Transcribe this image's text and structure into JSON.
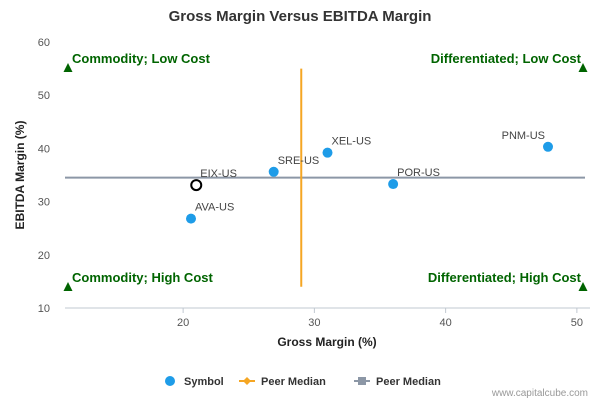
{
  "chart_data": {
    "type": "scatter",
    "title": "Gross Margin Versus EBITDA Margin",
    "xlabel": "Gross Margin (%)",
    "ylabel": "EBITDA Margin (%)",
    "xlim": [
      11,
      51
    ],
    "ylim": [
      10,
      60
    ],
    "x_ticks": [
      20,
      30,
      40,
      50
    ],
    "y_ticks": [
      10,
      20,
      30,
      40,
      50,
      60
    ],
    "points": [
      {
        "label": "AVA-US",
        "x": 20.6,
        "y": 26.8,
        "highlight": false
      },
      {
        "label": "EIX-US",
        "x": 21.0,
        "y": 33.1,
        "highlight": true
      },
      {
        "label": "SRE-US",
        "x": 26.9,
        "y": 35.6,
        "highlight": false
      },
      {
        "label": "XEL-US",
        "x": 31.0,
        "y": 39.2,
        "highlight": false
      },
      {
        "label": "POR-US",
        "x": 36.0,
        "y": 33.3,
        "highlight": false
      },
      {
        "label": "PNM-US",
        "x": 47.8,
        "y": 40.3,
        "highlight": false
      }
    ],
    "peer_median_x": 29.0,
    "peer_median_x_range": [
      14,
      55
    ],
    "peer_median_y": 34.5,
    "quadrants": {
      "top_left": "Commodity; Low Cost",
      "top_right": "Differentiated; Low Cost",
      "bottom_left": "Commodity; High Cost",
      "bottom_right": "Differentiated; High Cost"
    },
    "legend": [
      {
        "name": "Symbol",
        "color": "#1e9ce8",
        "marker": "circle"
      },
      {
        "name": "Peer Median",
        "color": "#f5a623",
        "marker": "diamond"
      },
      {
        "name": "Peer Median",
        "color": "#8c97a6",
        "marker": "square"
      }
    ],
    "legend_position": "bottom",
    "grid": false
  },
  "credit": "www.capitalcube.com",
  "colors": {
    "point": "#1e9ce8",
    "median_x": "#f5a623",
    "median_y": "#8c97a6",
    "quadrant": "#006400"
  }
}
